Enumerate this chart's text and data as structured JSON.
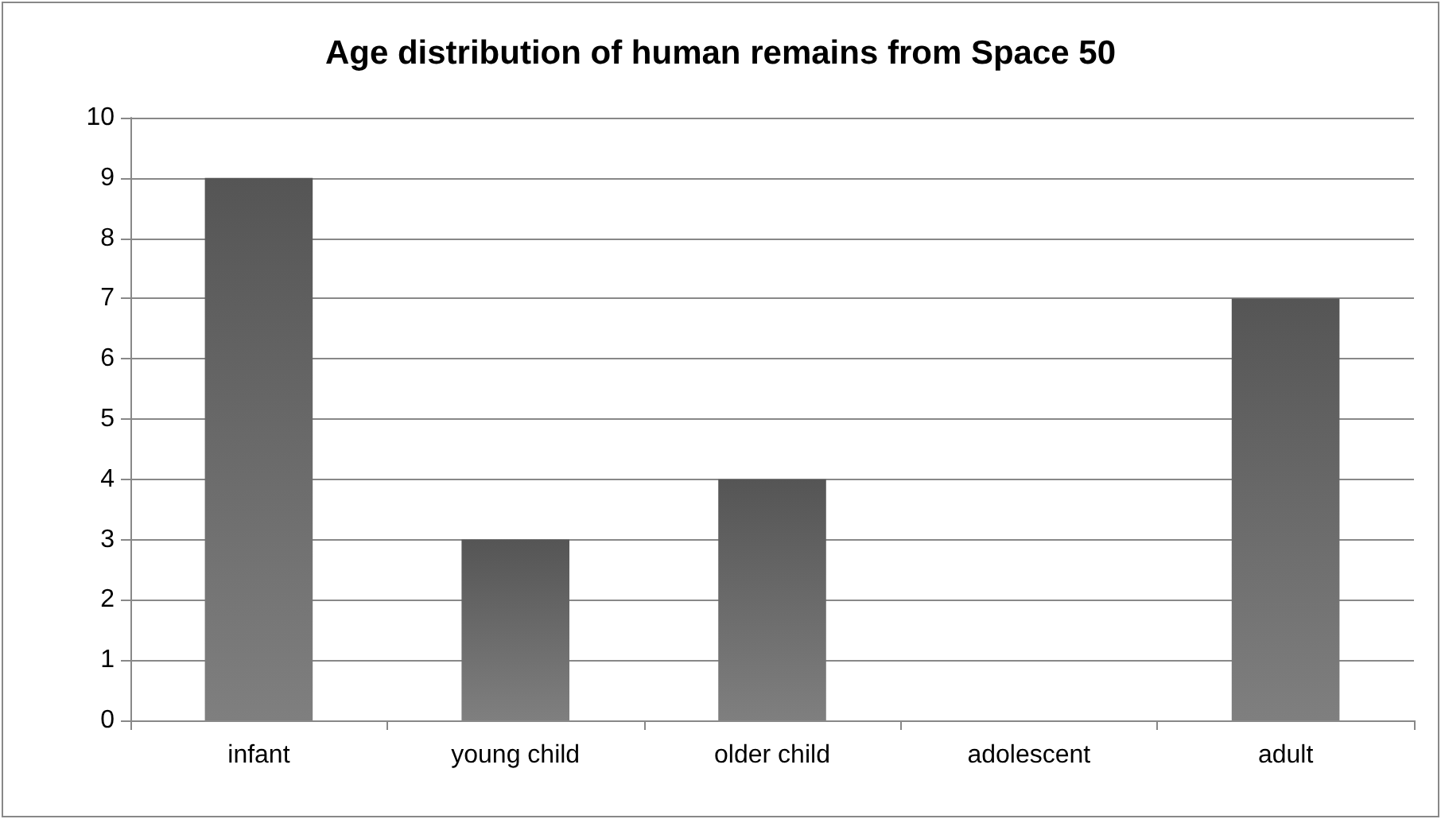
{
  "chart_data": {
    "type": "bar",
    "title": "Age distribution of human remains from Space 50",
    "categories": [
      "infant",
      "young child",
      "older child",
      "adolescent",
      "adult"
    ],
    "values": [
      9,
      3,
      4,
      0,
      7
    ],
    "color": "#555555",
    "ylim": [
      0,
      10
    ],
    "yticks": [
      0,
      1,
      2,
      3,
      4,
      5,
      6,
      7,
      8,
      9,
      10
    ],
    "grid": "y"
  }
}
